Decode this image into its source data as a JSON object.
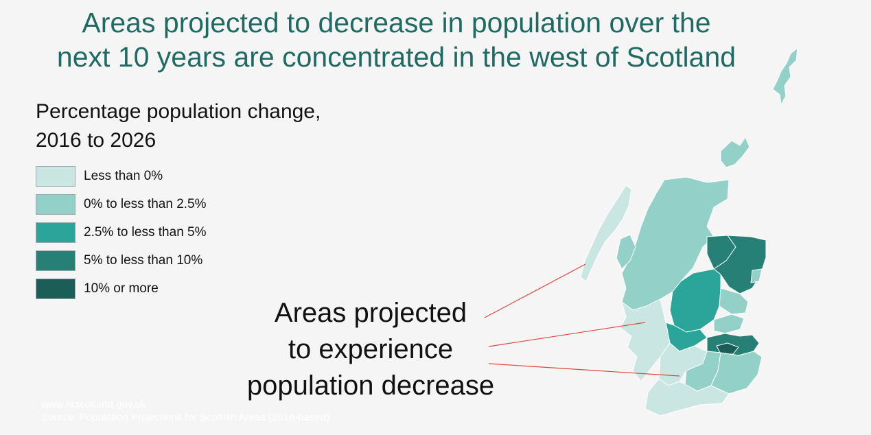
{
  "title": {
    "line1": "Areas projected to decrease in population over the",
    "line2": "next 10 years are concentrated in the west of Scotland"
  },
  "legend": {
    "title_line1": "Percentage population change,",
    "title_line2": "2016 to 2026",
    "items": [
      {
        "label": "Less than 0%",
        "color": "#c9e6e2"
      },
      {
        "label": "0% to less than 2.5%",
        "color": "#93d1c8"
      },
      {
        "label": "2.5% to less than 5%",
        "color": "#2ba499"
      },
      {
        "label": "5% to less than 10%",
        "color": "#268076"
      },
      {
        "label": "10% or more",
        "color": "#1b5e57"
      }
    ]
  },
  "callout": {
    "line1": "Areas projected",
    "line2": "to experience",
    "line3": "population decrease",
    "line_color": "#e0453b"
  },
  "footer": {
    "website": "www.nrscotland.gov.uk",
    "source": "Source: Population Projections for Scottish Areas (2016-based)"
  }
}
